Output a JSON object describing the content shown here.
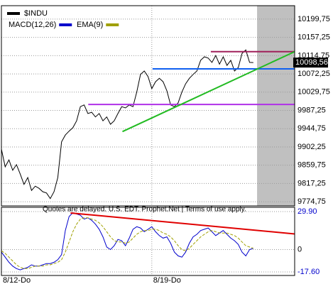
{
  "chart_data": [
    {
      "type": "line",
      "xlim": [
        0,
        78
      ],
      "xticks": [
        {
          "value": 0,
          "label": "8/12-Do"
        },
        {
          "value": 40,
          "label": "8/19-Do"
        }
      ],
      "ylim": [
        9765,
        10231
      ],
      "yticks": [
        {
          "value": 10199.75,
          "label": "10199,75"
        },
        {
          "value": 10157.25,
          "label": "10157,25"
        },
        {
          "value": 10114.75,
          "label": "10114,75"
        },
        {
          "value": 10072.25,
          "label": "10072,25"
        },
        {
          "value": 10029.75,
          "label": "10029,75"
        },
        {
          "value": 9987.25,
          "label": "9987,25"
        },
        {
          "value": 9944.75,
          "label": "9944,75"
        },
        {
          "value": 9902.25,
          "label": "9902,25"
        },
        {
          "value": 9859.75,
          "label": "9859,75"
        },
        {
          "value": 9817.25,
          "label": "9817,25"
        },
        {
          "value": 9774.75,
          "label": "9774,75"
        }
      ],
      "grid": true,
      "shaded_x": [
        68,
        78
      ],
      "footnote": "Quotes are delayed. U.S. EDT. Prophet.Net | Terms of use apply.",
      "series": [
        {
          "name": "$INDU",
          "color": "#000000",
          "values": [
            9897,
            9856,
            9872,
            9848,
            9861,
            9839,
            9815,
            9831,
            9801,
            9811,
            9806,
            9798,
            9795,
            9782,
            9798,
            9831,
            9914,
            9930,
            9939,
            9947,
            9963,
            9996,
            10000,
            9980,
            9983,
            9972,
            9980,
            9963,
            9972,
            9955,
            9963,
            9980,
            9996,
            9993,
            10000,
            9996,
            10030,
            10071,
            10079,
            10066,
            10038,
            10054,
            10062,
            10054,
            10033,
            10000,
            9996,
            10005,
            10030,
            10049,
            10062,
            10071,
            10079,
            10104,
            10112,
            10109,
            10099,
            10115,
            10095,
            10112,
            10092,
            10104,
            10079,
            10087,
            10120,
            10128,
            10099,
            10098.56
          ],
          "value_labels": [
            null,
            null,
            null,
            null,
            null,
            null,
            null,
            null,
            null,
            null,
            null,
            null,
            null,
            null,
            null,
            null,
            null,
            null,
            null,
            null,
            null,
            null,
            null,
            null,
            null,
            null,
            null,
            null,
            null,
            null,
            null,
            null,
            null,
            null,
            null,
            null,
            null,
            null,
            null,
            null,
            null,
            null,
            null,
            null,
            null,
            null,
            null,
            null,
            null,
            null,
            null,
            null,
            null,
            null,
            null,
            null,
            null,
            null,
            null,
            null,
            null,
            null,
            null,
            null,
            null,
            null,
            null,
            "10098,56"
          ]
        }
      ],
      "lines": [
        {
          "color": "#b030e8",
          "x": [
            23.1,
            78
          ],
          "y": [
            10001,
            10001
          ]
        },
        {
          "color": "#1060f0",
          "x": [
            40.2,
            78
          ],
          "y": [
            10084,
            10084
          ]
        },
        {
          "color": "#a0205a",
          "x": [
            55.7,
            78
          ],
          "y": [
            10124,
            10124
          ]
        },
        {
          "color": "#22bb22",
          "x": [
            32.2,
            78
          ],
          "y": [
            9938,
            10124
          ]
        }
      ]
    },
    {
      "type": "line",
      "xlim": [
        0,
        78
      ],
      "ylim": [
        -20.4,
        33.25
      ],
      "yticks": [
        {
          "value": 29.9,
          "label": "29.90"
        },
        0,
        {
          "value": -17.6,
          "label": "-17.60"
        }
      ],
      "grid": true,
      "series": [
        {
          "name": "MACD(12,26)",
          "color": "#0000cc",
          "values": [
            -2,
            -6,
            -10,
            -13,
            -15,
            -16,
            -15,
            -14,
            -12,
            -13,
            -13,
            -12,
            -11,
            -11,
            -10,
            -8,
            -4,
            15,
            26,
            29,
            28,
            27,
            24,
            25,
            23,
            20,
            16,
            10,
            2,
            0,
            3,
            8,
            7,
            3,
            9,
            16,
            18,
            17,
            14,
            16,
            18,
            14,
            11,
            9,
            10,
            5,
            -2,
            -5,
            -6,
            -2,
            5,
            10,
            12,
            15,
            16,
            17,
            14,
            11,
            13,
            15,
            12,
            9,
            7,
            4,
            -2,
            -5,
            0,
            1
          ]
        },
        {
          "name": "EMA(9)",
          "color": "#a0a000",
          "values": [
            -1,
            -3,
            -6,
            -9,
            -12,
            -14,
            -15,
            -15,
            -14,
            -13,
            -13,
            -13,
            -12,
            -12,
            -11,
            -10,
            -8,
            -2,
            6,
            14,
            20,
            24,
            25,
            25,
            24,
            23,
            21,
            18,
            14,
            10,
            7,
            6,
            6,
            5,
            6,
            9,
            12,
            14,
            15,
            15,
            16,
            16,
            15,
            13,
            12,
            10,
            7,
            3,
            0,
            -1,
            1,
            4,
            7,
            10,
            12,
            14,
            15,
            14,
            13,
            13,
            13,
            12,
            11,
            9,
            6,
            3,
            2,
            1
          ]
        }
      ],
      "lines": [
        {
          "color": "#e00000",
          "x": [
            18.4,
            78
          ],
          "y": [
            28.8,
            12.3
          ]
        }
      ]
    }
  ]
}
